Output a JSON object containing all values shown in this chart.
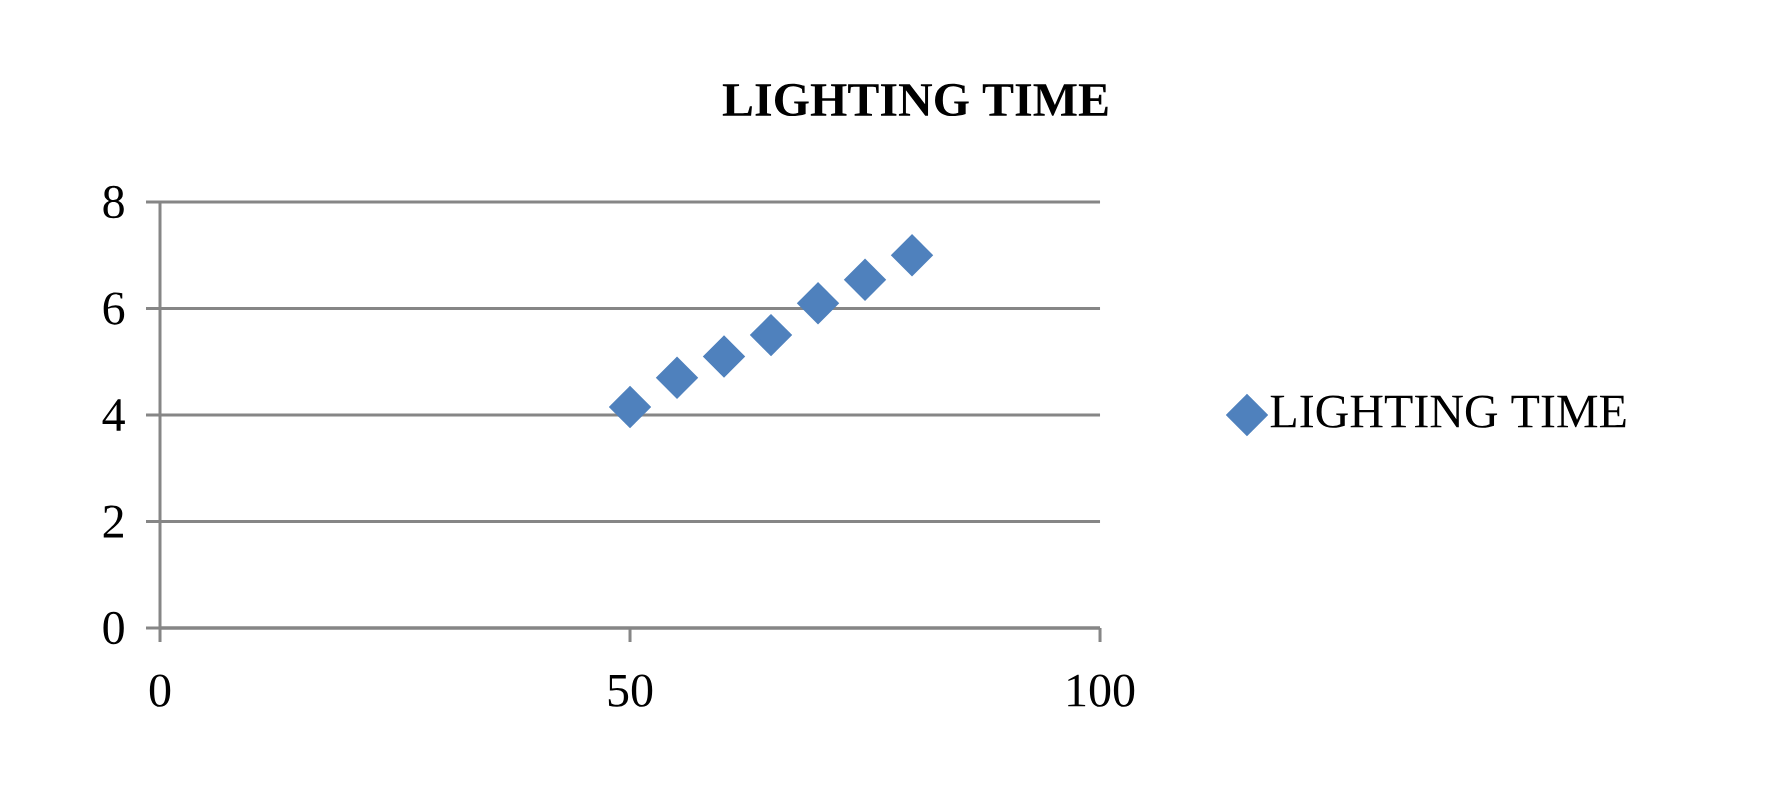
{
  "chart_data": {
    "type": "scatter",
    "title": "LIGHTING TIME",
    "x": [
      50,
      55,
      60,
      65,
      70,
      75,
      80
    ],
    "series": [
      {
        "name": "LIGHTING TIME",
        "color": "#4f81bd",
        "values": [
          4.15,
          4.7,
          5.1,
          5.5,
          6.1,
          6.54,
          7.0
        ]
      }
    ],
    "xlim": [
      0,
      100
    ],
    "xticks": [
      0,
      50,
      100
    ],
    "ylim": [
      0,
      8
    ],
    "yticks": [
      0,
      2,
      4,
      6,
      8
    ],
    "grid": "y",
    "legend": "right",
    "marker": "diamond"
  }
}
